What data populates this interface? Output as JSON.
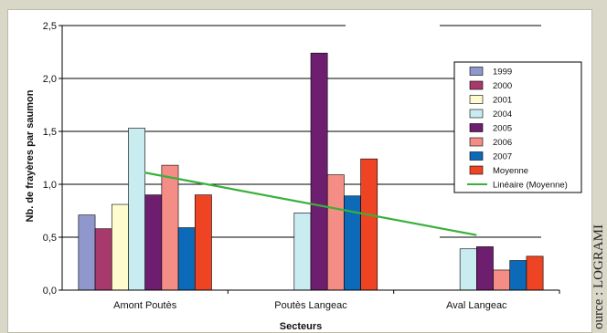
{
  "chart_data": {
    "type": "bar",
    "categories": [
      "Amont Poutès",
      "Poutès Langeac",
      "Aval Langeac"
    ],
    "series": [
      {
        "name": "1999",
        "color": "#8f97cc",
        "values": [
          0.71,
          null,
          null
        ]
      },
      {
        "name": "2000",
        "color": "#a8396c",
        "values": [
          0.58,
          null,
          null
        ]
      },
      {
        "name": "2001",
        "color": "#fefccf",
        "values": [
          0.81,
          null,
          null
        ]
      },
      {
        "name": "2004",
        "color": "#c9ecf1",
        "values": [
          1.53,
          0.73,
          0.39
        ]
      },
      {
        "name": "2005",
        "color": "#6d1e6e",
        "values": [
          0.9,
          2.24,
          0.41
        ]
      },
      {
        "name": "2006",
        "color": "#f48d86",
        "values": [
          1.18,
          1.09,
          0.19
        ]
      },
      {
        "name": "2007",
        "color": "#0d6ab8",
        "values": [
          0.59,
          0.89,
          0.28
        ]
      },
      {
        "name": "Moyenne",
        "color": "#ef4423",
        "values": [
          0.9,
          1.24,
          0.32
        ]
      }
    ],
    "trendline": {
      "name": "Linéaire (Moyenne)",
      "color": "#3ab03c",
      "start": 1.11,
      "end": 0.52
    },
    "xlabel": "Secteurs",
    "ylabel": "Nb. de frayères par saumon",
    "ylim": [
      0,
      2.5
    ],
    "yticks": [
      "0,0",
      "0,5",
      "1,0",
      "1,5",
      "2,0",
      "2,5"
    ],
    "grid": true,
    "legend": "right"
  },
  "source_text": "ource : LOGRAMI"
}
